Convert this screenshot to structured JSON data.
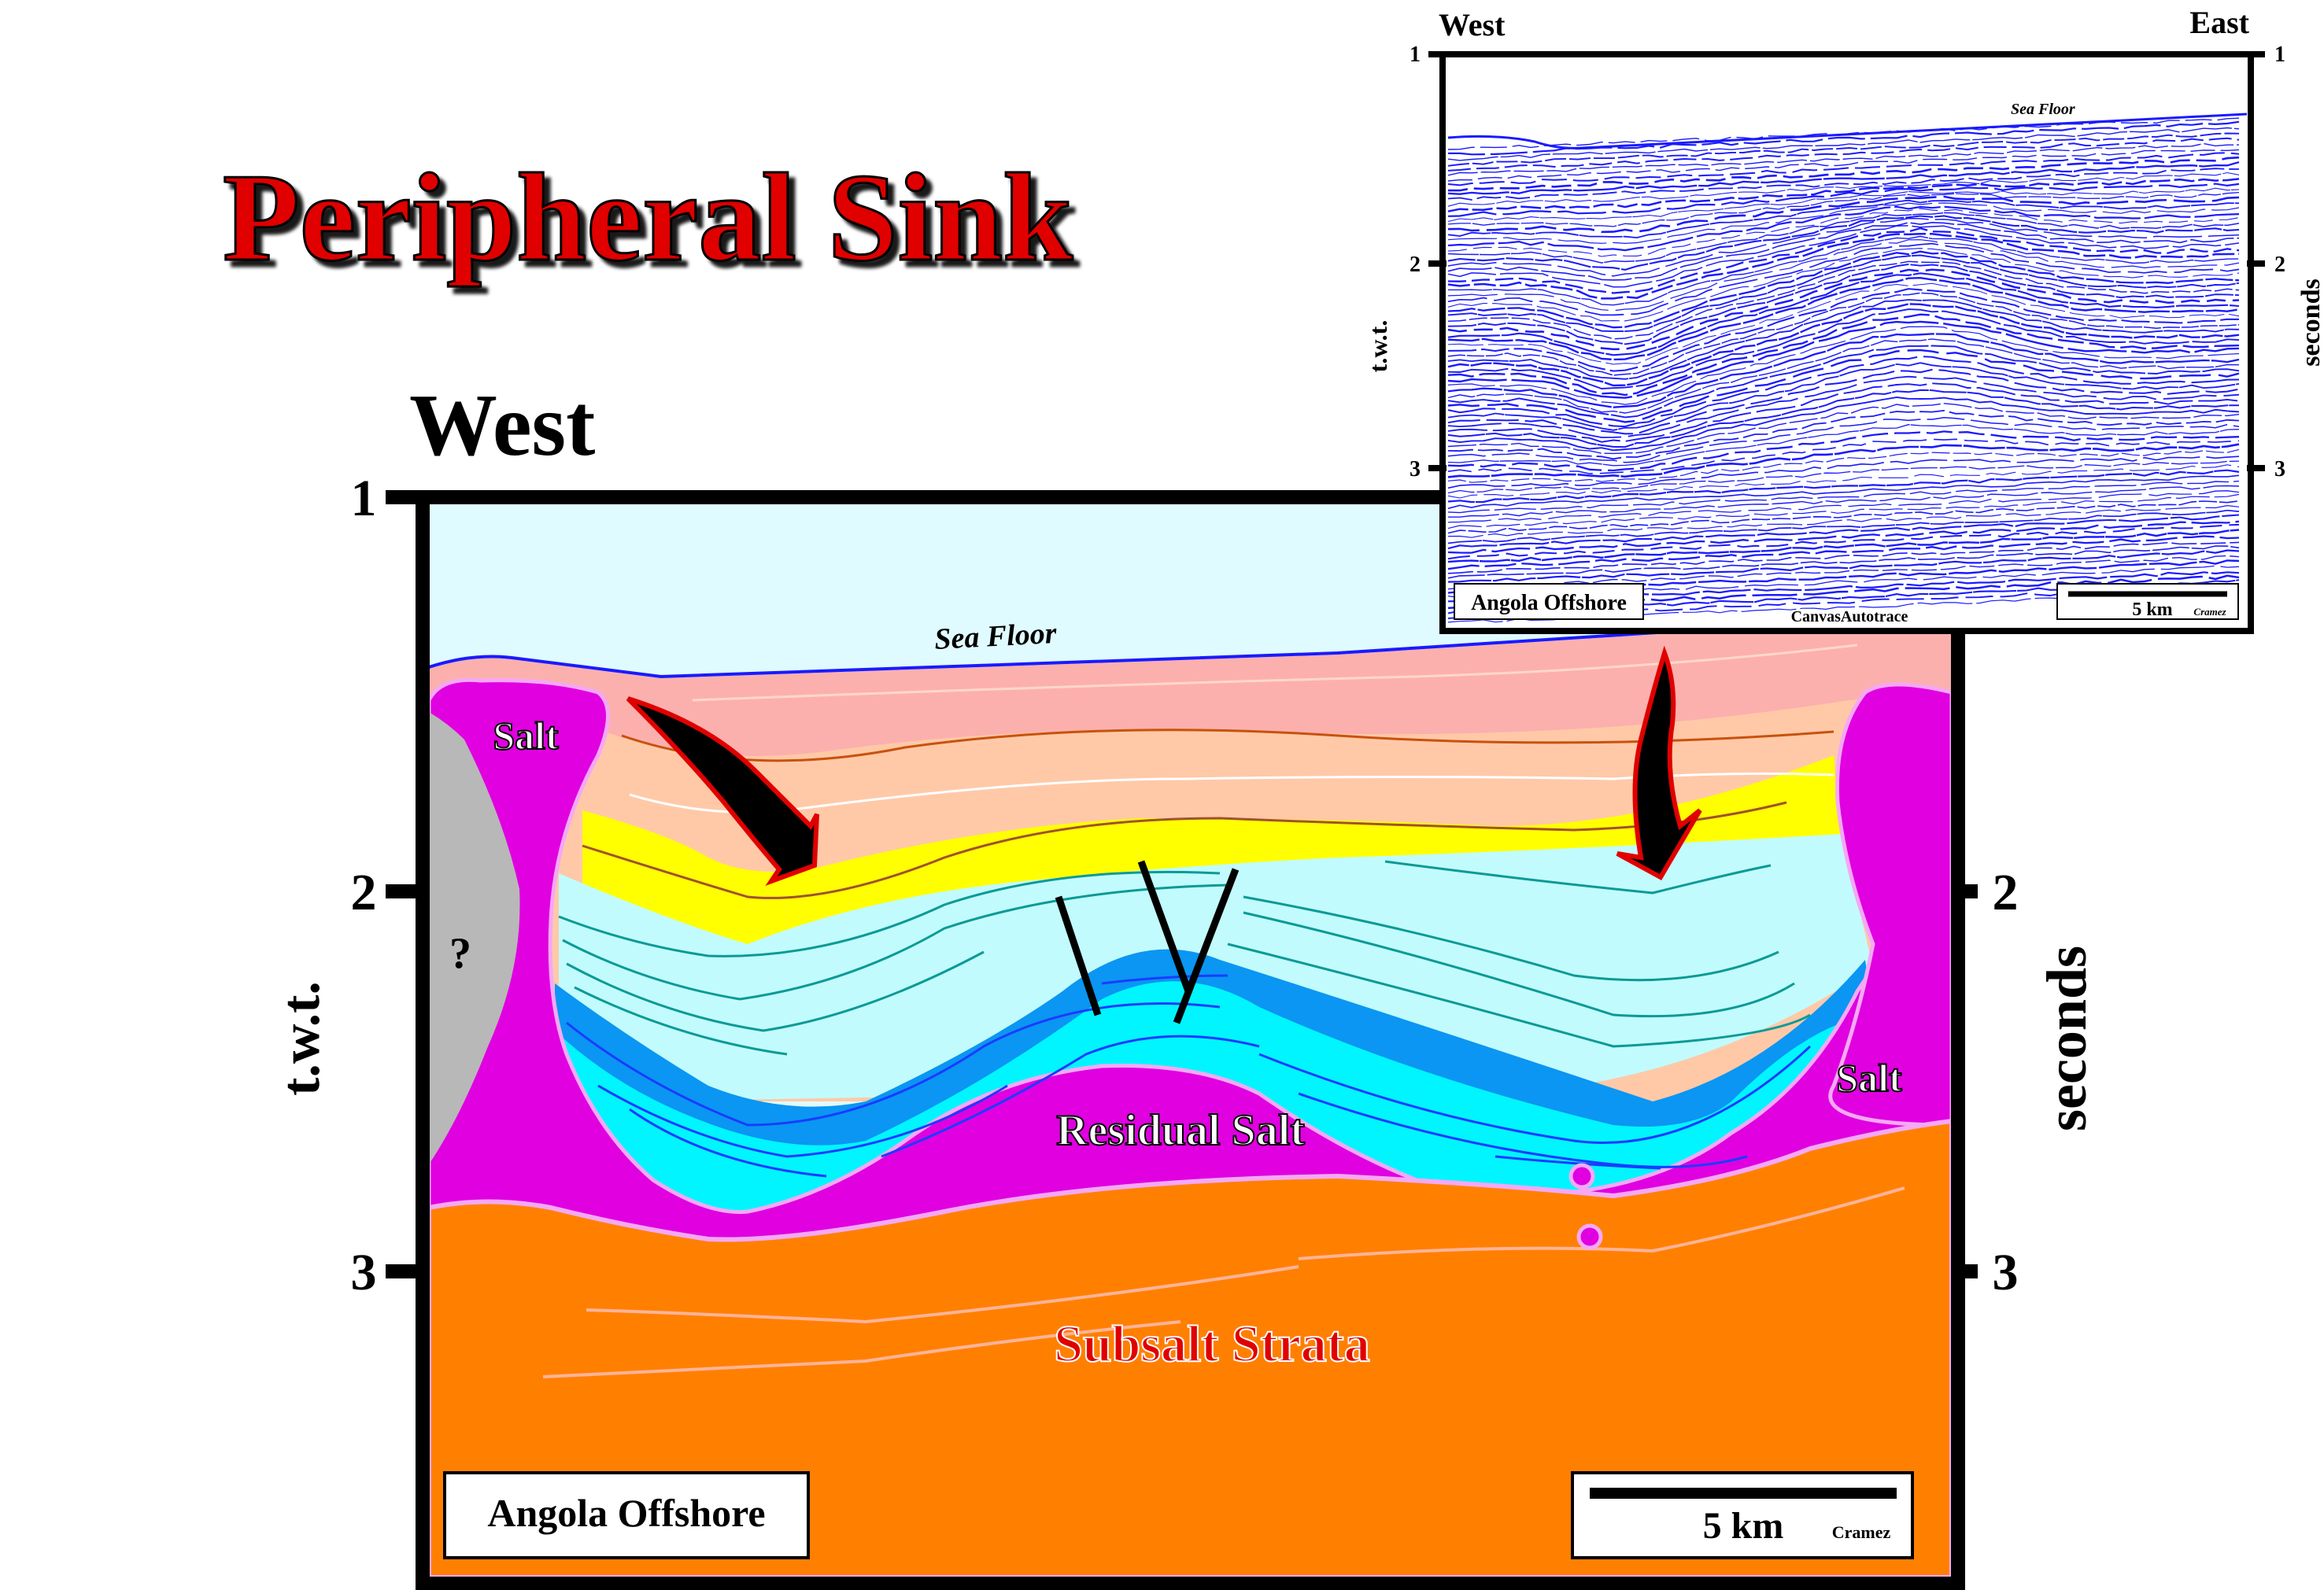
{
  "title": "Peripheral Sink",
  "main_section": {
    "direction_left": "West",
    "axis_left_label": "t.w.t.",
    "axis_right_label": "seconds",
    "ticks": [
      "1",
      "2",
      "3"
    ],
    "labels": {
      "sea_floor": "Sea Floor",
      "salt_left": "Salt",
      "salt_right": "Salt",
      "question": "?",
      "residual_salt": "Residual Salt",
      "subsalt_strata": "Subsalt Strata"
    },
    "location_box": "Angola Offshore",
    "scale_bar": {
      "label": "5 km",
      "author": "Cramez"
    }
  },
  "inset_section": {
    "direction_left": "West",
    "direction_right": "East",
    "axis_left_label": "t.w.t.",
    "axis_right_label": "seconds",
    "ticks": [
      "1",
      "2",
      "3"
    ],
    "sea_floor": "Sea Floor",
    "location_box": "Angola Offshore",
    "software": "CanvasAutotrace",
    "scale_bar": {
      "label": "5 km",
      "author": "Cramez"
    }
  },
  "colors": {
    "title_red": "#e00000",
    "sea_water": "#e0fbff",
    "salt_magenta": "#e000e0",
    "subsalt_orange": "#ff8000",
    "yellow_layer": "#ffff00",
    "seismic_blue": "#1a1aff"
  }
}
